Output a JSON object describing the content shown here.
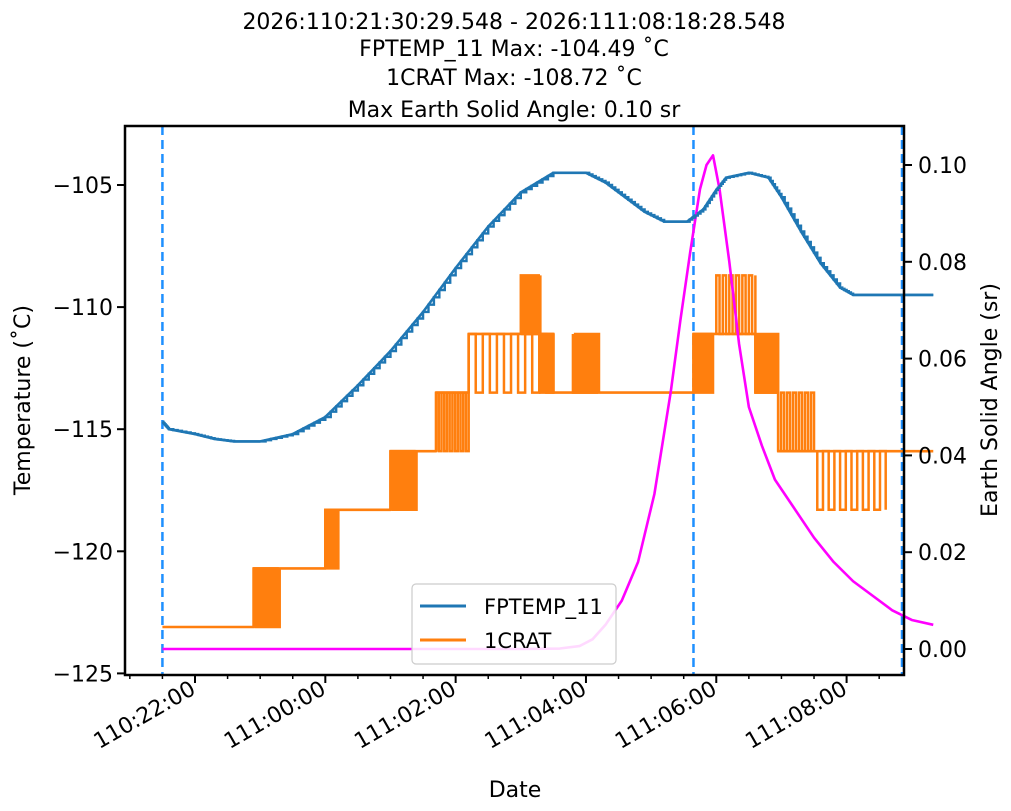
{
  "chart_data": {
    "type": "line",
    "title_lines": [
      "2026:110:21:30:29.548 - 2026:111:08:18:28.548",
      "FPTEMP_11 Max: -104.49 ˚C",
      "1CRAT Max: -108.72 ˚C",
      "Max Earth Solid Angle: 0.10 sr"
    ],
    "xlabel": "Date",
    "ylabel_left": "Temperature (˚C)",
    "ylabel_right": "Earth Solid Angle (sr)",
    "x_range_hours": [
      21.0,
      32.85
    ],
    "ylim_left": [
      -125.2,
      -102.4
    ],
    "ylim_right": [
      -0.005,
      0.108
    ],
    "x_ticks": [
      {
        "h": 22,
        "label": "110:22:00"
      },
      {
        "h": 24,
        "label": "111:00:00"
      },
      {
        "h": 26,
        "label": "111:02:00"
      },
      {
        "h": 28,
        "label": "111:04:00"
      },
      {
        "h": 30,
        "label": "111:06:00"
      },
      {
        "h": 32,
        "label": "111:08:00"
      }
    ],
    "x_minor_ticks": [
      21.0,
      21.5,
      22.5,
      23.0,
      23.5,
      24.5,
      25.0,
      25.5,
      26.5,
      27.0,
      27.5,
      28.5,
      29.0,
      29.5,
      30.5,
      31.0,
      31.5,
      32.5
    ],
    "y_left_ticks": [
      {
        "v": -105,
        "label": "−105"
      },
      {
        "v": -110,
        "label": "−110"
      },
      {
        "v": -115,
        "label": "−115"
      },
      {
        "v": -120,
        "label": "−120"
      },
      {
        "v": -125,
        "label": "−125"
      }
    ],
    "y_right_ticks": [
      {
        "v": 0.0,
        "label": "0.00"
      },
      {
        "v": 0.02,
        "label": "0.02"
      },
      {
        "v": 0.04,
        "label": "0.04"
      },
      {
        "v": 0.06,
        "label": "0.06"
      },
      {
        "v": 0.08,
        "label": "0.08"
      },
      {
        "v": 0.1,
        "label": "0.10"
      }
    ],
    "vlines_hours": [
      21.5,
      29.65,
      33.33
    ],
    "legend": {
      "placement": "lower-center",
      "entries": [
        "FPTEMP_11",
        "1CRAT"
      ]
    },
    "series": [
      {
        "name": "FPTEMP_11",
        "axis": "left",
        "color": "#1f77b4",
        "x": [
          21.5,
          21.6,
          22.0,
          22.3,
          22.6,
          23.0,
          23.5,
          24.0,
          24.5,
          25.0,
          25.5,
          26.0,
          26.5,
          27.0,
          27.5,
          27.8,
          28.0,
          28.3,
          28.6,
          28.9,
          29.2,
          29.55,
          29.8,
          30.0,
          30.15,
          30.5,
          30.8,
          31.0,
          31.3,
          31.6,
          31.9,
          32.1,
          32.3,
          33.33
        ],
        "y": [
          -114.7,
          -115.0,
          -115.2,
          -115.4,
          -115.5,
          -115.5,
          -115.2,
          -114.5,
          -113.2,
          -111.8,
          -110.2,
          -108.4,
          -106.7,
          -105.3,
          -104.5,
          -104.5,
          -104.5,
          -104.9,
          -105.5,
          -106.1,
          -106.5,
          -106.5,
          -106.0,
          -105.2,
          -104.7,
          -104.5,
          -104.7,
          -105.5,
          -106.9,
          -108.2,
          -109.2,
          -109.5,
          -109.5,
          -109.5
        ]
      },
      {
        "name": "1CRAT",
        "axis": "left",
        "color": "#ff7f0e",
        "x": [
          21.5,
          22.9,
          22.9,
          24.0,
          24.0,
          25.0,
          25.0,
          25.7,
          25.7,
          26.2,
          26.2,
          27.5,
          27.5,
          28.2,
          28.2,
          29.65,
          29.65,
          29.95,
          29.95,
          30.6,
          30.6,
          30.95,
          30.95,
          31.5,
          31.5,
          33.33
        ],
        "y": [
          -123.1,
          -123.1,
          -120.7,
          -120.7,
          -118.3,
          -118.3,
          -115.9,
          -115.9,
          -113.5,
          -113.5,
          -111.1,
          -111.1,
          -113.5,
          -113.5,
          -113.5,
          -113.5,
          -111.1,
          -111.1,
          -111.1,
          -111.1,
          -113.5,
          -113.5,
          -115.9,
          -115.9,
          -115.9,
          -115.9
        ]
      },
      {
        "name": "Earth Solid Angle",
        "axis": "right",
        "color": "#ff00ff",
        "x": [
          21.5,
          27.0,
          27.6,
          27.9,
          28.1,
          28.3,
          28.55,
          28.8,
          29.05,
          29.3,
          29.45,
          29.6,
          29.75,
          29.85,
          29.95,
          30.05,
          30.2,
          30.35,
          30.5,
          30.7,
          30.9,
          31.2,
          31.5,
          31.8,
          32.1,
          32.4,
          32.7,
          33.0,
          33.33
        ],
        "y": [
          0.0,
          0.0,
          0.0001,
          0.0006,
          0.002,
          0.005,
          0.01,
          0.018,
          0.032,
          0.053,
          0.068,
          0.082,
          0.095,
          0.1,
          0.102,
          0.095,
          0.08,
          0.063,
          0.05,
          0.042,
          0.035,
          0.029,
          0.023,
          0.018,
          0.014,
          0.011,
          0.008,
          0.006,
          0.005
        ]
      }
    ],
    "crat_burst_intervals": [
      [
        22.9,
        23.3,
        -123.1,
        -120.7
      ],
      [
        24.0,
        24.2,
        -120.7,
        -118.3
      ],
      [
        25.0,
        25.4,
        -118.3,
        -115.9
      ],
      [
        25.7,
        26.2,
        -115.9,
        -113.5
      ],
      [
        26.2,
        27.5,
        -113.5,
        -111.1
      ],
      [
        27.0,
        27.3,
        -111.1,
        -108.7
      ],
      [
        27.3,
        27.5,
        -111.1,
        -113.5
      ],
      [
        27.8,
        28.2,
        -111.1,
        -113.5
      ],
      [
        29.65,
        29.95,
        -113.5,
        -111.1
      ],
      [
        30.0,
        30.6,
        -111.1,
        -108.7
      ],
      [
        30.6,
        30.95,
        -111.1,
        -113.5
      ],
      [
        30.95,
        31.5,
        -113.5,
        -115.9
      ],
      [
        31.55,
        32.6,
        -115.9,
        -118.3
      ]
    ]
  }
}
